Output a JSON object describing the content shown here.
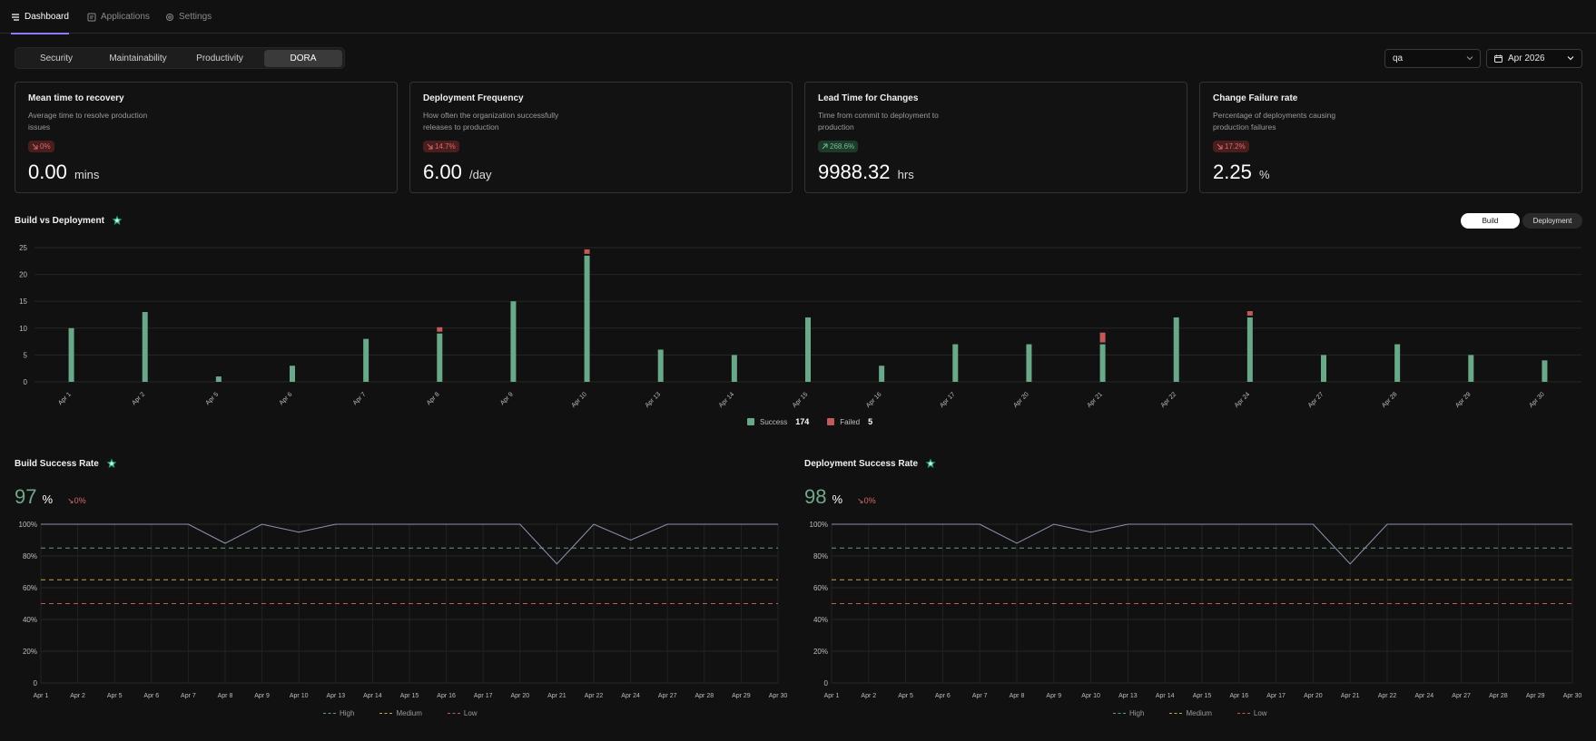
{
  "nav": {
    "tabs": [
      {
        "label": "Dashboard",
        "icon": "list-icon",
        "active": true
      },
      {
        "label": "Applications",
        "icon": "applications-icon",
        "active": false
      },
      {
        "label": "Settings",
        "icon": "gear-icon",
        "active": false
      }
    ]
  },
  "subtabs": [
    {
      "label": "Security",
      "active": false
    },
    {
      "label": "Maintainability",
      "active": false
    },
    {
      "label": "Productivity",
      "active": false
    },
    {
      "label": "DORA",
      "active": true
    }
  ],
  "filters": {
    "environment": "qa",
    "month": "Apr 2026"
  },
  "cards": [
    {
      "title": "Mean time to recovery",
      "description": "Average time to resolve production issues",
      "delta": "0%",
      "trend": "down",
      "status": "bad",
      "value": "0.00",
      "unit": "mins"
    },
    {
      "title": "Deployment Frequency",
      "description": "How often the organization successfully releases to production",
      "delta": "14.7%",
      "trend": "down",
      "status": "bad",
      "value": "6.00",
      "unit": "/day"
    },
    {
      "title": "Lead Time for Changes",
      "description": "Time from commit to deployment to production",
      "delta": "268.6%",
      "trend": "up",
      "status": "good",
      "value": "9988.32",
      "unit": "hrs"
    },
    {
      "title": "Change Failure rate",
      "description": "Percentage of deployments causing production failures",
      "delta": "17.2%",
      "trend": "down",
      "status": "bad",
      "value": "2.25",
      "unit": "%"
    }
  ],
  "build_vs_deployment": {
    "title": "Build vs Deployment",
    "toggles": [
      {
        "label": "Build",
        "active": true
      },
      {
        "label": "Deployment",
        "active": false
      }
    ],
    "legend": [
      {
        "label": "Success",
        "total": "174",
        "color": "#6aa88a"
      },
      {
        "label": "Failed",
        "total": "5",
        "color": "#c25a5a"
      }
    ]
  },
  "build_success_rate": {
    "title": "Build Success Rate",
    "value": "97",
    "unit": "%",
    "delta": "0%"
  },
  "deployment_success_rate": {
    "title": "Deployment Success Rate",
    "value": "98",
    "unit": "%",
    "delta": "0%"
  },
  "threshold_legend": [
    {
      "label": "High",
      "color": "#5f9e86"
    },
    {
      "label": "Medium",
      "color": "#c9a24a"
    },
    {
      "label": "Low",
      "color": "#c25a5a"
    }
  ],
  "chart_data": [
    {
      "type": "bar",
      "title": "Build vs Deployment",
      "stacked": true,
      "categories": [
        "Apr 1",
        "Apr 2",
        "Apr 5",
        "Apr 6",
        "Apr 7",
        "Apr 8",
        "Apr 9",
        "Apr 10",
        "Apr 13",
        "Apr 14",
        "Apr 15",
        "Apr 16",
        "Apr 17",
        "Apr 20",
        "Apr 21",
        "Apr 22",
        "Apr 24",
        "Apr 27",
        "Apr 28",
        "Apr 29",
        "Apr 30"
      ],
      "series": [
        {
          "name": "Success",
          "color": "#6aa88a",
          "values": [
            10,
            13,
            1,
            3,
            8,
            9,
            15,
            23.5,
            6,
            5,
            12,
            3,
            7,
            7,
            7,
            12,
            12,
            5,
            7,
            5,
            4
          ]
        },
        {
          "name": "Failed",
          "color": "#c25a5a",
          "values": [
            0,
            0,
            0,
            0,
            0,
            1,
            0,
            1,
            0,
            0,
            0,
            0,
            0,
            0,
            2,
            0,
            1,
            0,
            0,
            0,
            0
          ]
        }
      ],
      "yticks": [
        0,
        5,
        10,
        15,
        20,
        25
      ],
      "ylim": [
        0,
        25
      ],
      "grid": true,
      "legend_position": "bottom"
    },
    {
      "type": "line",
      "title": "Build Success Rate",
      "categories": [
        "Apr 1",
        "Apr 2",
        "Apr 5",
        "Apr 6",
        "Apr 7",
        "Apr 8",
        "Apr 9",
        "Apr 10",
        "Apr 13",
        "Apr 14",
        "Apr 15",
        "Apr 16",
        "Apr 17",
        "Apr 20",
        "Apr 21",
        "Apr 22",
        "Apr 24",
        "Apr 27",
        "Apr 28",
        "Apr 29",
        "Apr 30"
      ],
      "series": [
        {
          "values": [
            100,
            100,
            100,
            100,
            100,
            88,
            100,
            95,
            100,
            100,
            100,
            100,
            100,
            100,
            75,
            100,
            90,
            100,
            100,
            100,
            100
          ],
          "color": "#8a93b0"
        }
      ],
      "thresholds": [
        {
          "label": "High",
          "value": 85,
          "color": "#5f9e86"
        },
        {
          "label": "Medium",
          "value": 65,
          "color": "#c9a24a"
        },
        {
          "label": "Low",
          "value": 50,
          "color": "#c25a5a"
        }
      ],
      "yticks": [
        "0",
        "20%",
        "40%",
        "60%",
        "80%",
        "100%"
      ],
      "ylim": [
        0,
        100
      ],
      "grid": true,
      "legend_position": "bottom"
    },
    {
      "type": "line",
      "title": "Deployment Success Rate",
      "categories": [
        "Apr 1",
        "Apr 2",
        "Apr 5",
        "Apr 6",
        "Apr 7",
        "Apr 8",
        "Apr 9",
        "Apr 10",
        "Apr 13",
        "Apr 14",
        "Apr 15",
        "Apr 16",
        "Apr 17",
        "Apr 20",
        "Apr 21",
        "Apr 22",
        "Apr 24",
        "Apr 27",
        "Apr 28",
        "Apr 29",
        "Apr 30"
      ],
      "series": [
        {
          "values": [
            100,
            100,
            100,
            100,
            100,
            88,
            100,
            95,
            100,
            100,
            100,
            100,
            100,
            100,
            75,
            100,
            100,
            100,
            100,
            100,
            100
          ],
          "color": "#8a93b0"
        }
      ],
      "thresholds": [
        {
          "label": "High",
          "value": 85,
          "color": "#5f9e86"
        },
        {
          "label": "Medium",
          "value": 65,
          "color": "#c9a24a"
        },
        {
          "label": "Low",
          "value": 50,
          "color": "#c25a5a"
        }
      ],
      "yticks": [
        "0",
        "20%",
        "40%",
        "60%",
        "80%",
        "100%"
      ],
      "ylim": [
        0,
        100
      ],
      "grid": true,
      "legend_position": "bottom"
    }
  ]
}
